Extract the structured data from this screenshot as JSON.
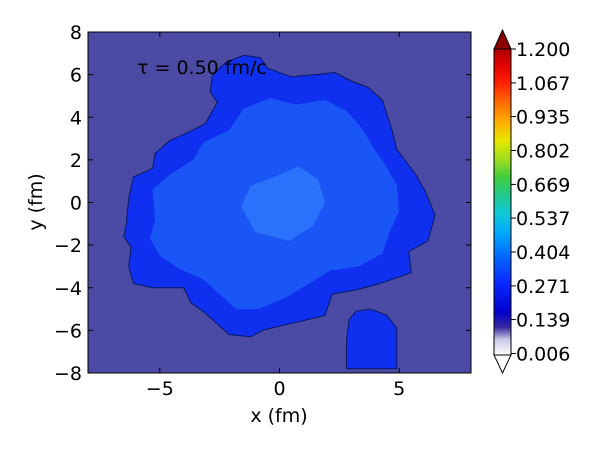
{
  "chart_data": {
    "type": "heatmap",
    "annotation": "τ = 0.50 fm/c",
    "xlabel": "x (fm)",
    "ylabel": "y (fm)",
    "xlim": [
      -8,
      8
    ],
    "ylim": [
      -8,
      8
    ],
    "xticks": [
      -5,
      0,
      5
    ],
    "xtick_labels": [
      "−5",
      "0",
      "5"
    ],
    "yticks": [
      8,
      6,
      4,
      2,
      0,
      -2,
      -4,
      -6,
      -8
    ],
    "ytick_labels": [
      "8",
      "6",
      "4",
      "2",
      "0",
      "−2",
      "−4",
      "−6",
      "−8"
    ],
    "colorbar": {
      "range": [
        0.0,
        1.2
      ],
      "ticks": [
        1.2,
        1.067,
        0.935,
        0.802,
        0.669,
        0.537,
        0.404,
        0.271,
        0.139,
        0.006
      ],
      "tick_labels": [
        "1.200",
        "1.067",
        "0.935",
        "0.802",
        "0.669",
        "0.537",
        "0.404",
        "0.271",
        "0.139",
        "0.006"
      ],
      "extend": "both"
    },
    "background_value": 0.08,
    "background_color": "#4b4ba6",
    "regions": [
      {
        "name": "main fireball",
        "level": 0.16,
        "color": "#1030f0",
        "outline": [
          [
            -6.4,
            -1.0
          ],
          [
            -6.3,
            0.2
          ],
          [
            -6.1,
            1.2
          ],
          [
            -5.3,
            1.6
          ],
          [
            -5.2,
            2.3
          ],
          [
            -4.6,
            2.9
          ],
          [
            -3.8,
            3.3
          ],
          [
            -3.1,
            3.7
          ],
          [
            -2.6,
            4.7
          ],
          [
            -2.9,
            5.2
          ],
          [
            -2.8,
            6.0
          ],
          [
            -2.2,
            6.6
          ],
          [
            -1.5,
            6.9
          ],
          [
            -0.8,
            6.8
          ],
          [
            -0.5,
            6.3
          ],
          [
            0.5,
            5.9
          ],
          [
            1.5,
            6.0
          ],
          [
            2.3,
            6.1
          ],
          [
            3.0,
            5.7
          ],
          [
            3.7,
            5.4
          ],
          [
            4.3,
            4.8
          ],
          [
            4.5,
            4.1
          ],
          [
            4.7,
            3.4
          ],
          [
            4.9,
            2.5
          ],
          [
            5.3,
            1.9
          ],
          [
            5.7,
            1.3
          ],
          [
            6.1,
            0.5
          ],
          [
            6.5,
            -0.6
          ],
          [
            6.2,
            -1.8
          ],
          [
            5.4,
            -2.3
          ],
          [
            5.5,
            -3.3
          ],
          [
            4.2,
            -3.8
          ],
          [
            3.2,
            -4.1
          ],
          [
            2.2,
            -4.3
          ],
          [
            1.9,
            -5.3
          ],
          [
            0.8,
            -5.6
          ],
          [
            0.0,
            -5.8
          ],
          [
            -0.7,
            -6.0
          ],
          [
            -1.2,
            -6.3
          ],
          [
            -2.1,
            -6.2
          ],
          [
            -2.6,
            -5.7
          ],
          [
            -3.1,
            -5.2
          ],
          [
            -3.7,
            -4.7
          ],
          [
            -4.0,
            -4.0
          ],
          [
            -5.3,
            -4.0
          ],
          [
            -6.1,
            -3.8
          ],
          [
            -6.3,
            -3.0
          ],
          [
            -6.2,
            -2.1
          ],
          [
            -6.5,
            -1.6
          ]
        ]
      },
      {
        "name": "small lump",
        "level": 0.16,
        "color": "#1030f0",
        "outline": [
          [
            2.9,
            -5.5
          ],
          [
            3.2,
            -5.1
          ],
          [
            3.8,
            -5.0
          ],
          [
            4.5,
            -5.3
          ],
          [
            4.9,
            -5.9
          ],
          [
            4.9,
            -7.8
          ],
          [
            2.8,
            -7.8
          ],
          [
            2.8,
            -6.5
          ]
        ]
      },
      {
        "name": "inner core",
        "level": 0.22,
        "color": "#1a55f5",
        "outline": [
          [
            -5.2,
            -0.8
          ],
          [
            -5.3,
            0.6
          ],
          [
            -4.6,
            1.3
          ],
          [
            -3.6,
            2.0
          ],
          [
            -3.2,
            2.8
          ],
          [
            -2.1,
            3.4
          ],
          [
            -1.5,
            4.4
          ],
          [
            -0.4,
            4.9
          ],
          [
            0.7,
            4.6
          ],
          [
            1.9,
            4.8
          ],
          [
            2.8,
            4.3
          ],
          [
            3.5,
            3.4
          ],
          [
            3.9,
            2.6
          ],
          [
            4.4,
            1.8
          ],
          [
            4.9,
            0.8
          ],
          [
            5.0,
            -0.4
          ],
          [
            4.6,
            -1.4
          ],
          [
            4.3,
            -2.4
          ],
          [
            3.3,
            -3.0
          ],
          [
            2.1,
            -3.2
          ],
          [
            1.1,
            -3.9
          ],
          [
            0.2,
            -4.5
          ],
          [
            -0.9,
            -5.0
          ],
          [
            -1.8,
            -5.0
          ],
          [
            -2.5,
            -4.3
          ],
          [
            -3.2,
            -3.6
          ],
          [
            -4.2,
            -3.1
          ],
          [
            -5.0,
            -2.5
          ],
          [
            -5.4,
            -1.7
          ]
        ]
      },
      {
        "name": "hot core",
        "level": 0.27,
        "color": "#2a72fb",
        "outline": [
          [
            -1.0,
            -1.4
          ],
          [
            -1.6,
            -0.2
          ],
          [
            -1.2,
            0.8
          ],
          [
            -0.2,
            1.2
          ],
          [
            0.8,
            1.7
          ],
          [
            1.6,
            1.1
          ],
          [
            1.9,
            0.0
          ],
          [
            1.4,
            -1.1
          ],
          [
            0.4,
            -1.8
          ]
        ]
      }
    ]
  }
}
